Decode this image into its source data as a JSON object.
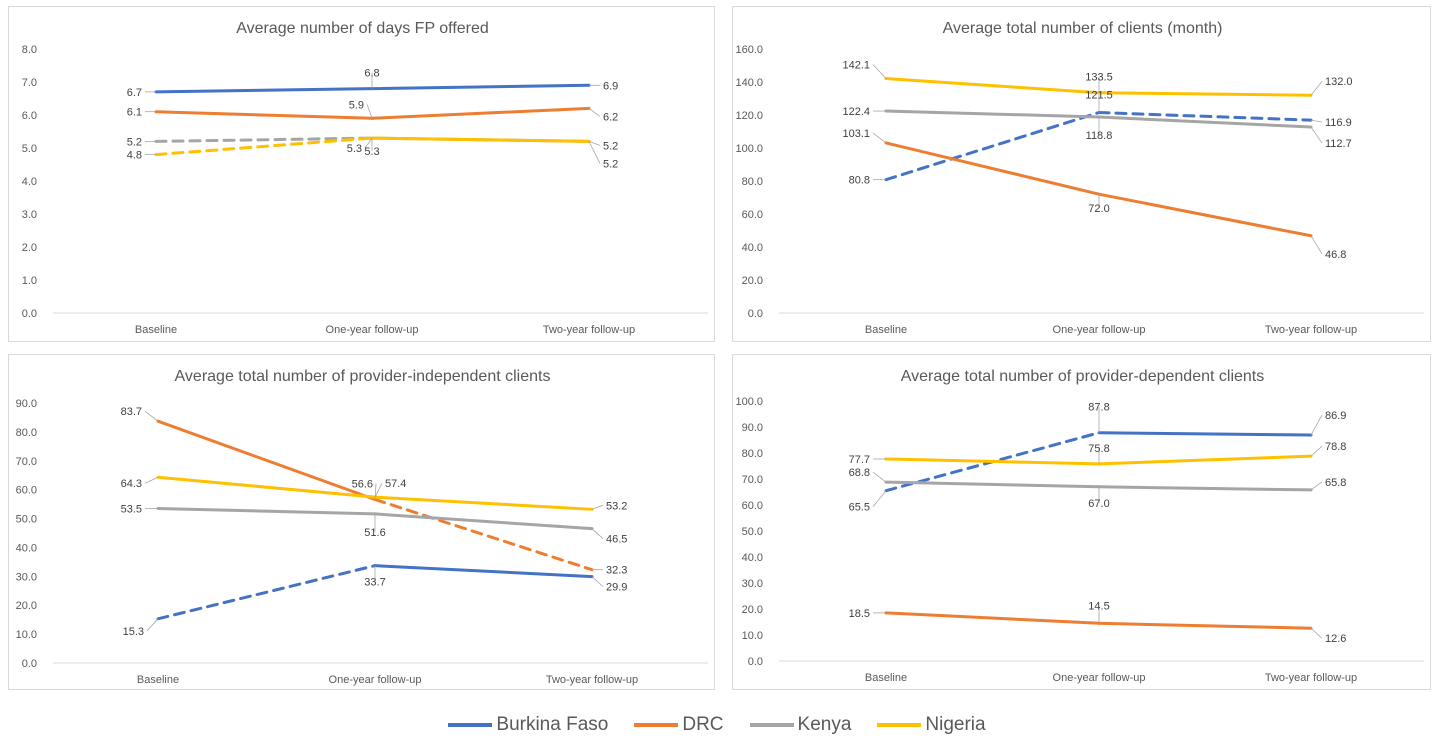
{
  "legend": [
    {
      "name": "Burkina Faso",
      "color": "#4472C4"
    },
    {
      "name": "DRC",
      "color": "#ED7D31"
    },
    {
      "name": "Kenya",
      "color": "#A5A5A5"
    },
    {
      "name": "Nigeria",
      "color": "#FFC000"
    }
  ],
  "chart_data": [
    {
      "type": "line",
      "title": "Average number of days FP offered",
      "categories": [
        "Baseline",
        "One-year follow-up",
        "Two-year follow-up"
      ],
      "ylim": [
        0,
        8
      ],
      "yticks": [
        "0.0",
        "1.0",
        "2.0",
        "3.0",
        "4.0",
        "5.0",
        "6.0",
        "7.0",
        "8.0"
      ],
      "grid": false,
      "series": [
        {
          "name": "Burkina Faso",
          "values": [
            6.7,
            6.8,
            6.9
          ],
          "labels": [
            "6.7",
            "6.8",
            "6.9"
          ],
          "dashed_first_segment": false
        },
        {
          "name": "DRC",
          "values": [
            6.1,
            5.9,
            6.2
          ],
          "labels": [
            "6.1",
            "5.9",
            "6.2"
          ],
          "dashed_first_segment": false
        },
        {
          "name": "Kenya",
          "values": [
            5.2,
            5.3,
            5.2
          ],
          "labels": [
            "5.2",
            "5.3",
            "5.2"
          ],
          "dashed_first_segment": true
        },
        {
          "name": "Nigeria",
          "values": [
            4.8,
            5.3,
            5.2
          ],
          "labels": [
            "4.8",
            "5.3",
            "5.2"
          ],
          "dashed_first_segment": true
        }
      ]
    },
    {
      "type": "line",
      "title": "Average total number of clients (month)",
      "categories": [
        "Baseline",
        "One-year follow-up",
        "Two-year follow-up"
      ],
      "ylim": [
        0,
        160
      ],
      "yticks": [
        "0.0",
        "20.0",
        "40.0",
        "60.0",
        "80.0",
        "100.0",
        "120.0",
        "140.0",
        "160.0"
      ],
      "grid": false,
      "series": [
        {
          "name": "Burkina Faso",
          "values": [
            80.8,
            121.5,
            116.9
          ],
          "labels": [
            "80.8",
            "121.5",
            "116.9"
          ],
          "dashed_first_segment": true,
          "dashed_all": true
        },
        {
          "name": "DRC",
          "values": [
            103.1,
            72.0,
            46.8
          ],
          "labels": [
            "103.1",
            "72.0",
            "46.8"
          ],
          "dashed_first_segment": false
        },
        {
          "name": "Kenya",
          "values": [
            122.4,
            118.8,
            112.7
          ],
          "labels": [
            "122.4",
            "118.8",
            "112.7"
          ],
          "dashed_first_segment": false
        },
        {
          "name": "Nigeria",
          "values": [
            142.1,
            133.5,
            132.0
          ],
          "labels": [
            "142.1",
            "133.5",
            "132.0"
          ],
          "dashed_first_segment": false
        }
      ]
    },
    {
      "type": "line",
      "title": "Average total number of provider-independent clients",
      "categories": [
        "Baseline",
        "One-year follow-up",
        "Two-year follow-up"
      ],
      "ylim": [
        0,
        90
      ],
      "yticks": [
        "0.0",
        "10.0",
        "20.0",
        "30.0",
        "40.0",
        "50.0",
        "60.0",
        "70.0",
        "80.0",
        "90.0"
      ],
      "grid": false,
      "series": [
        {
          "name": "Burkina Faso",
          "values": [
            15.3,
            33.7,
            29.9
          ],
          "labels": [
            "15.3",
            "33.7",
            "29.9"
          ],
          "dashed_first_segment": true
        },
        {
          "name": "DRC",
          "values": [
            83.7,
            56.6,
            32.3
          ],
          "labels": [
            "83.7",
            "56.6",
            "32.3"
          ],
          "dashed_first_segment": false,
          "dashed_second_segment": true
        },
        {
          "name": "Kenya",
          "values": [
            53.5,
            51.6,
            46.5
          ],
          "labels": [
            "53.5",
            "51.6",
            "46.5"
          ],
          "dashed_first_segment": false
        },
        {
          "name": "Nigeria",
          "values": [
            64.3,
            57.4,
            53.2
          ],
          "labels": [
            "64.3",
            "57.4",
            "53.2"
          ],
          "dashed_first_segment": false
        }
      ]
    },
    {
      "type": "line",
      "title": "Average total number of provider-dependent clients",
      "categories": [
        "Baseline",
        "One-year follow-up",
        "Two-year follow-up"
      ],
      "ylim": [
        0,
        100
      ],
      "yticks": [
        "0.0",
        "10.0",
        "20.0",
        "30.0",
        "40.0",
        "50.0",
        "60.0",
        "70.0",
        "80.0",
        "90.0",
        "100.0"
      ],
      "grid": false,
      "series": [
        {
          "name": "Burkina Faso",
          "values": [
            65.5,
            87.8,
            86.9
          ],
          "labels": [
            "65.5",
            "87.8",
            "86.9"
          ],
          "dashed_first_segment": true
        },
        {
          "name": "DRC",
          "values": [
            18.5,
            14.5,
            12.6
          ],
          "labels": [
            "18.5",
            "14.5",
            "12.6"
          ],
          "dashed_first_segment": false
        },
        {
          "name": "Kenya",
          "values": [
            68.8,
            67.0,
            65.8
          ],
          "labels": [
            "68.8",
            "67.0",
            "65.8"
          ],
          "dashed_first_segment": false
        },
        {
          "name": "Nigeria",
          "values": [
            77.7,
            75.8,
            78.8
          ],
          "labels": [
            "77.7",
            "75.8",
            "78.8"
          ],
          "dashed_first_segment": false
        }
      ]
    }
  ]
}
